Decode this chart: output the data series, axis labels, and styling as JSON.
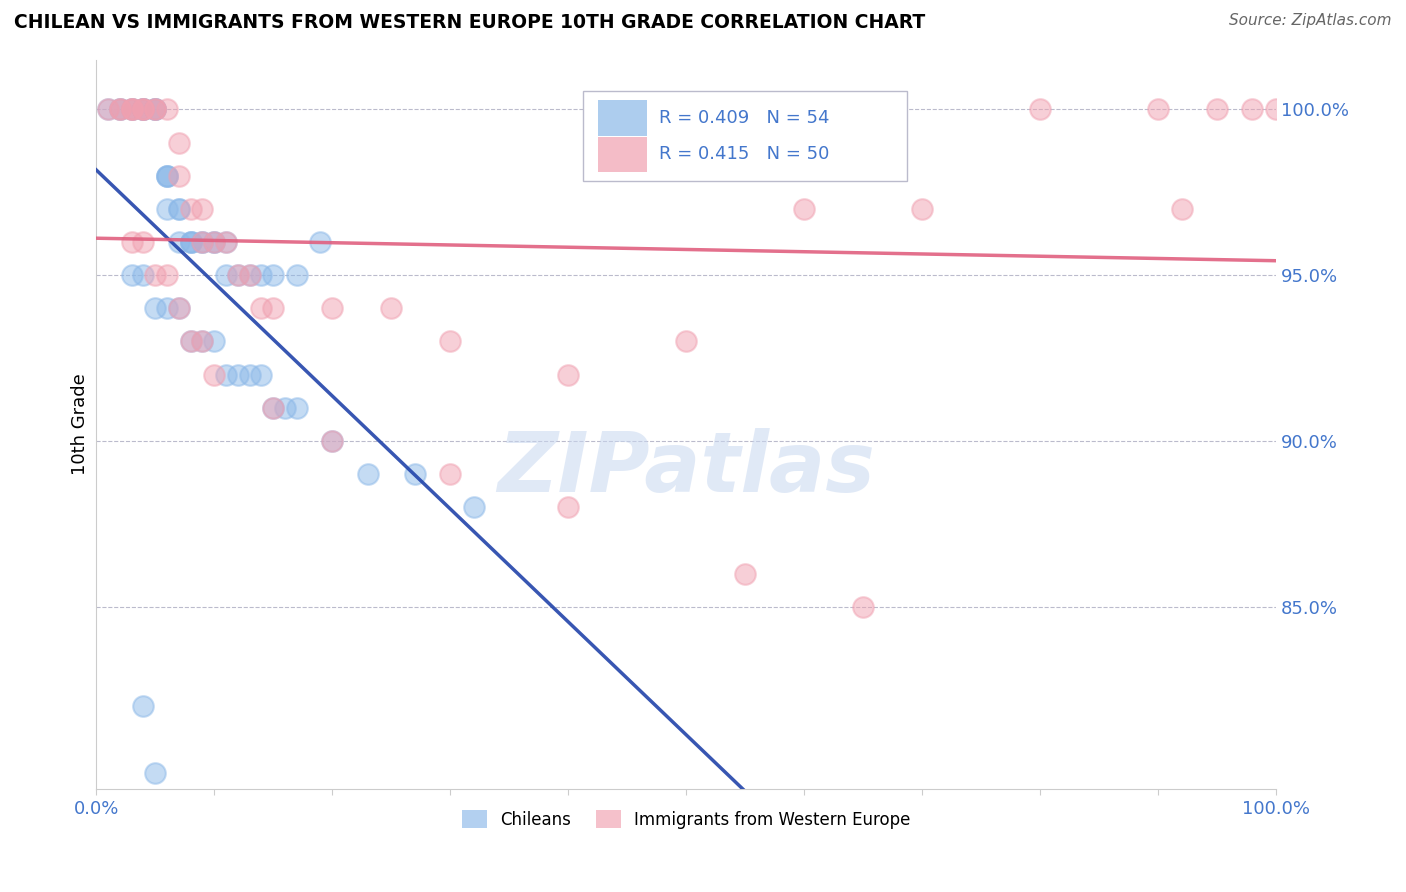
{
  "title": "CHILEAN VS IMMIGRANTS FROM WESTERN EUROPE 10TH GRADE CORRELATION CHART",
  "source": "Source: ZipAtlas.com",
  "ylabel": "10th Grade",
  "xlim": [
    0.0,
    1.0
  ],
  "ylim": [
    0.795,
    1.015
  ],
  "yticks": [
    0.85,
    0.9,
    0.95,
    1.0
  ],
  "ytick_labels": [
    "85.0%",
    "90.0%",
    "95.0%",
    "100.0%"
  ],
  "legend_text_blue": "R = 0.409   N = 54",
  "legend_text_pink": "R = 0.415   N = 50",
  "legend_label_blue": "Chileans",
  "legend_label_pink": "Immigrants from Western Europe",
  "blue_color": "#8BB8E8",
  "pink_color": "#F0A0B0",
  "blue_line_color": "#2244AA",
  "pink_line_color": "#E06080",
  "blue_N": 54,
  "pink_N": 50,
  "blue_x": [
    0.01,
    0.02,
    0.02,
    0.03,
    0.03,
    0.04,
    0.04,
    0.04,
    0.05,
    0.05,
    0.05,
    0.06,
    0.06,
    0.06,
    0.06,
    0.07,
    0.07,
    0.07,
    0.08,
    0.08,
    0.08,
    0.09,
    0.09,
    0.1,
    0.1,
    0.11,
    0.11,
    0.12,
    0.13,
    0.14,
    0.15,
    0.17,
    0.19,
    0.03,
    0.04,
    0.05,
    0.06,
    0.07,
    0.08,
    0.09,
    0.1,
    0.11,
    0.12,
    0.13,
    0.14,
    0.15,
    0.16,
    0.17,
    0.2,
    0.23,
    0.27,
    0.32,
    0.04,
    0.05
  ],
  "blue_y": [
    1.0,
    1.0,
    1.0,
    1.0,
    1.0,
    1.0,
    1.0,
    1.0,
    1.0,
    1.0,
    1.0,
    0.98,
    0.98,
    0.98,
    0.97,
    0.97,
    0.97,
    0.96,
    0.96,
    0.96,
    0.96,
    0.96,
    0.96,
    0.96,
    0.96,
    0.96,
    0.95,
    0.95,
    0.95,
    0.95,
    0.95,
    0.95,
    0.96,
    0.95,
    0.95,
    0.94,
    0.94,
    0.94,
    0.93,
    0.93,
    0.93,
    0.92,
    0.92,
    0.92,
    0.92,
    0.91,
    0.91,
    0.91,
    0.9,
    0.89,
    0.89,
    0.88,
    0.82,
    0.8
  ],
  "pink_x": [
    0.01,
    0.02,
    0.02,
    0.03,
    0.03,
    0.03,
    0.04,
    0.04,
    0.04,
    0.05,
    0.05,
    0.06,
    0.07,
    0.07,
    0.08,
    0.09,
    0.09,
    0.1,
    0.11,
    0.12,
    0.13,
    0.14,
    0.15,
    0.2,
    0.25,
    0.3,
    0.4,
    0.5,
    0.6,
    0.7,
    0.8,
    0.9,
    0.95,
    1.0,
    0.03,
    0.04,
    0.05,
    0.06,
    0.07,
    0.08,
    0.09,
    0.1,
    0.15,
    0.2,
    0.3,
    0.4,
    0.55,
    0.65,
    0.98,
    0.92
  ],
  "pink_y": [
    1.0,
    1.0,
    1.0,
    1.0,
    1.0,
    1.0,
    1.0,
    1.0,
    1.0,
    1.0,
    1.0,
    1.0,
    0.99,
    0.98,
    0.97,
    0.97,
    0.96,
    0.96,
    0.96,
    0.95,
    0.95,
    0.94,
    0.94,
    0.94,
    0.94,
    0.93,
    0.92,
    0.93,
    0.97,
    0.97,
    1.0,
    1.0,
    1.0,
    1.0,
    0.96,
    0.96,
    0.95,
    0.95,
    0.94,
    0.93,
    0.93,
    0.92,
    0.91,
    0.9,
    0.89,
    0.88,
    0.86,
    0.85,
    1.0,
    0.97
  ]
}
